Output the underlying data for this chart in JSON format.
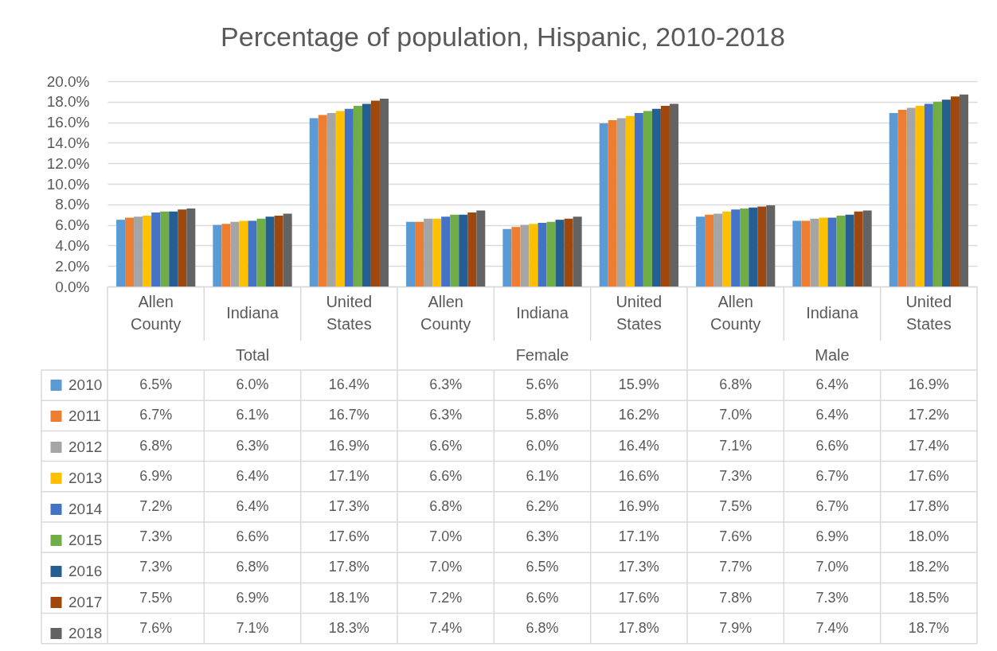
{
  "chart_data": {
    "type": "bar",
    "title": "Percentage of population, Hispanic, 2010-2018",
    "categories": [
      "Allen County",
      "Indiana",
      "United States",
      "Allen County",
      "Indiana",
      "United States",
      "Allen County",
      "Indiana",
      "United States"
    ],
    "annotations": [
      "Total",
      "Female",
      "Male"
    ],
    "series": [
      {
        "name": "2010",
        "color": "#5b9bd5",
        "values": [
          6.5,
          6.0,
          16.4,
          6.3,
          5.6,
          15.9,
          6.8,
          6.4,
          16.9
        ],
        "value_labels": [
          "6.5%",
          "6.0%",
          "16.4%",
          "6.3%",
          "5.6%",
          "15.9%",
          "6.8%",
          "6.4%",
          "16.9%"
        ]
      },
      {
        "name": "2011",
        "color": "#ed7d31",
        "values": [
          6.7,
          6.1,
          16.7,
          6.3,
          5.8,
          16.2,
          7.0,
          6.4,
          17.2
        ],
        "value_labels": [
          "6.7%",
          "6.1%",
          "16.7%",
          "6.3%",
          "5.8%",
          "16.2%",
          "7.0%",
          "6.4%",
          "17.2%"
        ]
      },
      {
        "name": "2012",
        "color": "#a5a5a5",
        "values": [
          6.8,
          6.3,
          16.9,
          6.6,
          6.0,
          16.4,
          7.1,
          6.6,
          17.4
        ],
        "value_labels": [
          "6.8%",
          "6.3%",
          "16.9%",
          "6.6%",
          "6.0%",
          "16.4%",
          "7.1%",
          "6.6%",
          "17.4%"
        ]
      },
      {
        "name": "2013",
        "color": "#ffc000",
        "values": [
          6.9,
          6.4,
          17.1,
          6.6,
          6.1,
          16.6,
          7.3,
          6.7,
          17.6
        ],
        "value_labels": [
          "6.9%",
          "6.4%",
          "17.1%",
          "6.6%",
          "6.1%",
          "16.6%",
          "7.3%",
          "6.7%",
          "17.6%"
        ]
      },
      {
        "name": "2014",
        "color": "#4472c4",
        "values": [
          7.2,
          6.4,
          17.3,
          6.8,
          6.2,
          16.9,
          7.5,
          6.7,
          17.8
        ],
        "value_labels": [
          "7.2%",
          "6.4%",
          "17.3%",
          "6.8%",
          "6.2%",
          "16.9%",
          "7.5%",
          "6.7%",
          "17.8%"
        ]
      },
      {
        "name": "2015",
        "color": "#70ad47",
        "values": [
          7.3,
          6.6,
          17.6,
          7.0,
          6.3,
          17.1,
          7.6,
          6.9,
          18.0
        ],
        "value_labels": [
          "7.3%",
          "6.6%",
          "17.6%",
          "7.0%",
          "6.3%",
          "17.1%",
          "7.6%",
          "6.9%",
          "18.0%"
        ]
      },
      {
        "name": "2016",
        "color": "#255e91",
        "values": [
          7.3,
          6.8,
          17.8,
          7.0,
          6.5,
          17.3,
          7.7,
          7.0,
          18.2
        ],
        "value_labels": [
          "7.3%",
          "6.8%",
          "17.8%",
          "7.0%",
          "6.5%",
          "17.3%",
          "7.7%",
          "7.0%",
          "18.2%"
        ]
      },
      {
        "name": "2017",
        "color": "#9e480e",
        "values": [
          7.5,
          6.9,
          18.1,
          7.2,
          6.6,
          17.6,
          7.8,
          7.3,
          18.5
        ],
        "value_labels": [
          "7.5%",
          "6.9%",
          "18.1%",
          "7.2%",
          "6.6%",
          "17.6%",
          "7.8%",
          "7.3%",
          "18.5%"
        ]
      },
      {
        "name": "2018",
        "color": "#636363",
        "values": [
          7.6,
          7.1,
          18.3,
          7.4,
          6.8,
          17.8,
          7.9,
          7.4,
          18.7
        ],
        "value_labels": [
          "7.6%",
          "7.1%",
          "18.3%",
          "7.4%",
          "6.8%",
          "17.8%",
          "7.9%",
          "7.4%",
          "18.7%"
        ]
      }
    ],
    "ylim": [
      0,
      20
    ],
    "yticks": [
      {
        "value": 0,
        "label": "0.0%"
      },
      {
        "value": 2,
        "label": "2.0%"
      },
      {
        "value": 4,
        "label": "4.0%"
      },
      {
        "value": 6,
        "label": "6.0%"
      },
      {
        "value": 8,
        "label": "8.0%"
      },
      {
        "value": 10,
        "label": "10.0%"
      },
      {
        "value": 12,
        "label": "12.0%"
      },
      {
        "value": 14,
        "label": "14.0%"
      },
      {
        "value": 16,
        "label": "16.0%"
      },
      {
        "value": 18,
        "label": "18.0%"
      },
      {
        "value": 20,
        "label": "20.0%"
      }
    ],
    "grid": "y",
    "legend": "bottom left"
  }
}
